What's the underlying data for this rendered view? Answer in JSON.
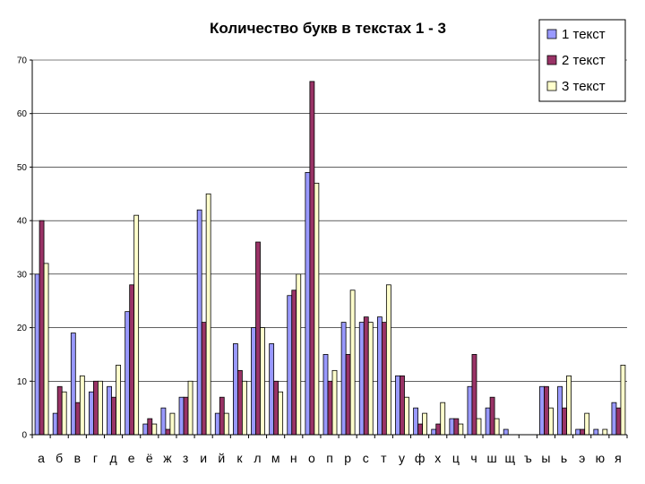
{
  "chart_data": {
    "type": "bar",
    "title": "Количество букв в текстах 1 - 3",
    "xlabel": "",
    "ylabel": "",
    "ylim": [
      0,
      70
    ],
    "yticks": [
      0,
      10,
      20,
      30,
      40,
      50,
      60,
      70
    ],
    "grid": true,
    "legend_position": "top-right",
    "categories": [
      "а",
      "б",
      "в",
      "г",
      "д",
      "е",
      "ё",
      "ж",
      "з",
      "и",
      "й",
      "к",
      "л",
      "м",
      "н",
      "о",
      "п",
      "р",
      "с",
      "т",
      "у",
      "ф",
      "х",
      "ц",
      "ч",
      "ш",
      "щ",
      "ъ",
      "ы",
      "ь",
      "э",
      "ю",
      "я"
    ],
    "series": [
      {
        "name": "1 текст",
        "color": "#9999ff",
        "values": [
          30,
          4,
          19,
          8,
          9,
          23,
          2,
          5,
          7,
          42,
          4,
          17,
          20,
          17,
          26,
          49,
          15,
          21,
          21,
          22,
          11,
          5,
          1,
          3,
          9,
          5,
          1,
          0,
          9,
          9,
          1,
          1,
          6
        ]
      },
      {
        "name": "2 текст",
        "color": "#993366",
        "values": [
          40,
          9,
          6,
          10,
          7,
          28,
          3,
          1,
          7,
          21,
          7,
          12,
          36,
          10,
          27,
          66,
          10,
          15,
          22,
          21,
          11,
          2,
          2,
          3,
          15,
          7,
          0,
          0,
          9,
          5,
          1,
          0,
          5
        ]
      },
      {
        "name": "3 текст",
        "color": "#ffffcc",
        "values": [
          32,
          8,
          11,
          10,
          13,
          41,
          2,
          4,
          10,
          45,
          4,
          10,
          20,
          8,
          30,
          47,
          12,
          27,
          21,
          28,
          7,
          4,
          6,
          2,
          3,
          3,
          0,
          0,
          5,
          11,
          4,
          1,
          13
        ]
      }
    ]
  }
}
